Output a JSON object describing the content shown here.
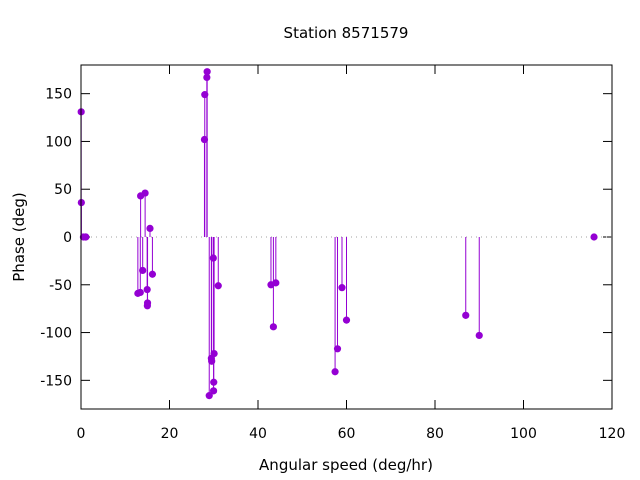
{
  "chart_data": {
    "type": "scatter",
    "style": "impulses with points",
    "title": "Station 8571579",
    "xlabel": "Angular speed (deg/hr)",
    "ylabel": "Phase (deg)",
    "xlim": [
      0,
      120
    ],
    "ylim": [
      -180,
      180
    ],
    "xticks": [
      0,
      20,
      40,
      60,
      80,
      100,
      120
    ],
    "yticks": [
      -150,
      -100,
      -50,
      0,
      50,
      100,
      150
    ],
    "grid": false,
    "zero_line": true,
    "color": "#9400d3",
    "points": [
      {
        "x": 0.04,
        "y": 131
      },
      {
        "x": 0.08,
        "y": 36
      },
      {
        "x": 0.54,
        "y": 0
      },
      {
        "x": 1.02,
        "y": 0
      },
      {
        "x": 1.1,
        "y": 0
      },
      {
        "x": 12.85,
        "y": -59
      },
      {
        "x": 13.4,
        "y": -58
      },
      {
        "x": 13.47,
        "y": 43
      },
      {
        "x": 13.94,
        "y": -35
      },
      {
        "x": 14.49,
        "y": 46
      },
      {
        "x": 14.96,
        "y": -55
      },
      {
        "x": 15.0,
        "y": -72
      },
      {
        "x": 15.04,
        "y": -69
      },
      {
        "x": 15.59,
        "y": 9
      },
      {
        "x": 16.14,
        "y": -39
      },
      {
        "x": 27.9,
        "y": 102
      },
      {
        "x": 27.97,
        "y": 149
      },
      {
        "x": 28.44,
        "y": 167
      },
      {
        "x": 28.51,
        "y": 173
      },
      {
        "x": 28.98,
        "y": -166
      },
      {
        "x": 29.46,
        "y": -127
      },
      {
        "x": 29.53,
        "y": -130
      },
      {
        "x": 29.96,
        "y": -161
      },
      {
        "x": 30.0,
        "y": -152
      },
      {
        "x": 29.9,
        "y": -22
      },
      {
        "x": 30.08,
        "y": -122
      },
      {
        "x": 31.02,
        "y": -51
      },
      {
        "x": 42.93,
        "y": -50
      },
      {
        "x": 43.48,
        "y": -94
      },
      {
        "x": 44.03,
        "y": -48
      },
      {
        "x": 57.42,
        "y": -141
      },
      {
        "x": 57.97,
        "y": -117
      },
      {
        "x": 58.98,
        "y": -53
      },
      {
        "x": 60.0,
        "y": -87
      },
      {
        "x": 86.95,
        "y": -82
      },
      {
        "x": 90.0,
        "y": -103
      },
      {
        "x": 115.94,
        "y": 0
      }
    ]
  }
}
